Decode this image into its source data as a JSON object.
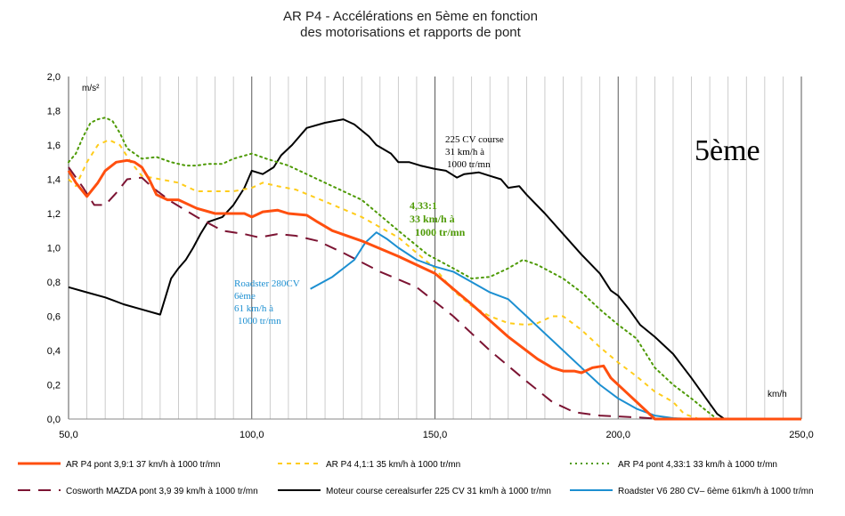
{
  "chart_data": {
    "type": "line",
    "title": [
      "AR P4 - Accélérations en 5ème en fonction",
      "des motorisations et rapports de pont"
    ],
    "ylabel": "m/s²",
    "xlabel": "km/h",
    "xlim": [
      50,
      250
    ],
    "ylim": [
      0,
      2
    ],
    "x_ticks": [
      "50,0",
      "100,0",
      "150,0",
      "200,0",
      "250,0"
    ],
    "y_ticks": [
      "0,0",
      "0,2",
      "0,4",
      "0,6",
      "0,8",
      "1,0",
      "1,2",
      "1,4",
      "1,6",
      "1,8",
      "2,0"
    ],
    "grid": "vertical every 5 km/h, major every 50 km/h",
    "big_label": "5ème",
    "annotations": [
      {
        "lines": [
          "225 CV course",
          "31 km/h à",
          "1000 tr/mn"
        ],
        "color": "#000000"
      },
      {
        "lines": [
          "4,33:1",
          "33 km/h à",
          "1000 tr/mn"
        ],
        "color": "#4e9a06"
      },
      {
        "lines": [
          "Roadster 280CV",
          "6ème",
          "61 km/h à",
          "1000 tr/mn"
        ],
        "color": "#1c8fd1"
      }
    ],
    "series": [
      {
        "name": "AR P4 pont 3,9:1  37 km/h à 1000 tr/mn",
        "color": "#ff4f0f",
        "style": "solid",
        "width": 3,
        "points": [
          [
            50,
            1.45
          ],
          [
            52,
            1.38
          ],
          [
            55,
            1.3
          ],
          [
            58,
            1.38
          ],
          [
            60,
            1.45
          ],
          [
            63,
            1.5
          ],
          [
            66,
            1.51
          ],
          [
            68,
            1.5
          ],
          [
            70,
            1.47
          ],
          [
            72,
            1.4
          ],
          [
            74,
            1.31
          ],
          [
            77,
            1.28
          ],
          [
            80,
            1.28
          ],
          [
            85,
            1.23
          ],
          [
            90,
            1.2
          ],
          [
            95,
            1.2
          ],
          [
            98,
            1.2
          ],
          [
            100,
            1.18
          ],
          [
            103,
            1.21
          ],
          [
            107,
            1.22
          ],
          [
            110,
            1.2
          ],
          [
            115,
            1.19
          ],
          [
            118,
            1.15
          ],
          [
            122,
            1.1
          ],
          [
            130,
            1.04
          ],
          [
            140,
            0.95
          ],
          [
            150,
            0.85
          ],
          [
            160,
            0.67
          ],
          [
            170,
            0.48
          ],
          [
            178,
            0.35
          ],
          [
            182,
            0.3
          ],
          [
            185,
            0.28
          ],
          [
            188,
            0.28
          ],
          [
            190,
            0.27
          ],
          [
            193,
            0.3
          ],
          [
            196,
            0.31
          ],
          [
            198,
            0.24
          ],
          [
            202,
            0.16
          ],
          [
            207,
            0.06
          ],
          [
            210,
            0.0
          ],
          [
            250,
            0.0
          ]
        ]
      },
      {
        "name": "AR P4  4,1:1  35 km/h à 1000 tr/mn",
        "color": "#ffcc1a",
        "style": "dash",
        "width": 2,
        "points": [
          [
            50,
            1.4
          ],
          [
            52,
            1.36
          ],
          [
            55,
            1.5
          ],
          [
            58,
            1.6
          ],
          [
            61,
            1.63
          ],
          [
            64,
            1.6
          ],
          [
            67,
            1.5
          ],
          [
            70,
            1.42
          ],
          [
            75,
            1.4
          ],
          [
            80,
            1.38
          ],
          [
            85,
            1.33
          ],
          [
            90,
            1.33
          ],
          [
            95,
            1.33
          ],
          [
            100,
            1.35
          ],
          [
            103,
            1.38
          ],
          [
            107,
            1.36
          ],
          [
            112,
            1.34
          ],
          [
            120,
            1.27
          ],
          [
            130,
            1.18
          ],
          [
            140,
            1.06
          ],
          [
            150,
            0.88
          ],
          [
            155,
            0.75
          ],
          [
            160,
            0.66
          ],
          [
            165,
            0.6
          ],
          [
            170,
            0.56
          ],
          [
            175,
            0.55
          ],
          [
            178,
            0.56
          ],
          [
            182,
            0.6
          ],
          [
            185,
            0.6
          ],
          [
            190,
            0.52
          ],
          [
            195,
            0.42
          ],
          [
            200,
            0.33
          ],
          [
            205,
            0.25
          ],
          [
            210,
            0.16
          ],
          [
            215,
            0.1
          ],
          [
            218,
            0.03
          ],
          [
            222,
            0.0
          ],
          [
            250,
            0.0
          ]
        ]
      },
      {
        "name": "AR P4 pont  4,33:1  33 km/h à 1000 tr/mn",
        "color": "#4e9a06",
        "style": "dot",
        "width": 2,
        "points": [
          [
            50,
            1.5
          ],
          [
            52,
            1.55
          ],
          [
            54,
            1.65
          ],
          [
            56,
            1.73
          ],
          [
            58,
            1.75
          ],
          [
            60,
            1.76
          ],
          [
            62,
            1.74
          ],
          [
            64,
            1.67
          ],
          [
            66,
            1.58
          ],
          [
            70,
            1.52
          ],
          [
            74,
            1.53
          ],
          [
            78,
            1.5
          ],
          [
            82,
            1.48
          ],
          [
            85,
            1.48
          ],
          [
            88,
            1.49
          ],
          [
            92,
            1.49
          ],
          [
            95,
            1.52
          ],
          [
            100,
            1.55
          ],
          [
            104,
            1.52
          ],
          [
            110,
            1.48
          ],
          [
            120,
            1.38
          ],
          [
            130,
            1.28
          ],
          [
            140,
            1.1
          ],
          [
            148,
            0.96
          ],
          [
            155,
            0.88
          ],
          [
            160,
            0.82
          ],
          [
            165,
            0.83
          ],
          [
            170,
            0.88
          ],
          [
            174,
            0.93
          ],
          [
            178,
            0.9
          ],
          [
            185,
            0.82
          ],
          [
            190,
            0.74
          ],
          [
            195,
            0.64
          ],
          [
            200,
            0.55
          ],
          [
            205,
            0.47
          ],
          [
            210,
            0.3
          ],
          [
            215,
            0.2
          ],
          [
            220,
            0.12
          ],
          [
            224,
            0.05
          ],
          [
            227,
            0.0
          ],
          [
            250,
            0.0
          ]
        ]
      },
      {
        "name": "Cosworth MAZDA pont 3,9  39 km/h à 1000 tr/mn",
        "color": "#7c1433",
        "style": "longdash",
        "width": 2,
        "points": [
          [
            50,
            1.47
          ],
          [
            54,
            1.35
          ],
          [
            57,
            1.25
          ],
          [
            60,
            1.25
          ],
          [
            63,
            1.32
          ],
          [
            66,
            1.4
          ],
          [
            70,
            1.41
          ],
          [
            73,
            1.35
          ],
          [
            78,
            1.27
          ],
          [
            85,
            1.18
          ],
          [
            92,
            1.1
          ],
          [
            98,
            1.08
          ],
          [
            102,
            1.06
          ],
          [
            107,
            1.08
          ],
          [
            112,
            1.07
          ],
          [
            118,
            1.04
          ],
          [
            125,
            0.97
          ],
          [
            135,
            0.86
          ],
          [
            145,
            0.77
          ],
          [
            155,
            0.6
          ],
          [
            165,
            0.4
          ],
          [
            175,
            0.22
          ],
          [
            182,
            0.1
          ],
          [
            188,
            0.04
          ],
          [
            195,
            0.02
          ],
          [
            205,
            0.01
          ],
          [
            212,
            0.0
          ]
        ]
      },
      {
        "name": "Moteur course cerealsurfer 225 CV  31 km/h à 1000 tr/mn",
        "color": "#000000",
        "style": "solid",
        "width": 2,
        "points": [
          [
            50,
            0.77
          ],
          [
            55,
            0.74
          ],
          [
            60,
            0.71
          ],
          [
            65,
            0.67
          ],
          [
            70,
            0.64
          ],
          [
            75,
            0.61
          ],
          [
            78,
            0.82
          ],
          [
            80,
            0.88
          ],
          [
            82,
            0.93
          ],
          [
            84,
            1.0
          ],
          [
            86,
            1.08
          ],
          [
            88,
            1.15
          ],
          [
            92,
            1.18
          ],
          [
            95,
            1.25
          ],
          [
            98,
            1.35
          ],
          [
            100,
            1.45
          ],
          [
            103,
            1.43
          ],
          [
            106,
            1.47
          ],
          [
            108,
            1.54
          ],
          [
            111,
            1.6
          ],
          [
            115,
            1.7
          ],
          [
            120,
            1.73
          ],
          [
            125,
            1.75
          ],
          [
            128,
            1.72
          ],
          [
            132,
            1.65
          ],
          [
            134,
            1.6
          ],
          [
            138,
            1.55
          ],
          [
            140,
            1.5
          ],
          [
            143,
            1.5
          ],
          [
            146,
            1.48
          ],
          [
            150,
            1.46
          ],
          [
            153,
            1.45
          ],
          [
            156,
            1.41
          ],
          [
            158,
            1.43
          ],
          [
            162,
            1.44
          ],
          [
            165,
            1.42
          ],
          [
            168,
            1.4
          ],
          [
            170,
            1.35
          ],
          [
            173,
            1.36
          ],
          [
            175,
            1.31
          ],
          [
            180,
            1.2
          ],
          [
            185,
            1.08
          ],
          [
            190,
            0.96
          ],
          [
            195,
            0.85
          ],
          [
            198,
            0.75
          ],
          [
            200,
            0.72
          ],
          [
            203,
            0.64
          ],
          [
            206,
            0.55
          ],
          [
            210,
            0.48
          ],
          [
            215,
            0.38
          ],
          [
            220,
            0.24
          ],
          [
            224,
            0.12
          ],
          [
            227,
            0.03
          ],
          [
            229,
            0.0
          ],
          [
            250,
            0.0
          ]
        ]
      },
      {
        "name": "Roadster V6 280 CV– 6ème 61km/h à 1000 tr/mn",
        "color": "#1c8fd1",
        "style": "solid",
        "width": 2,
        "points": [
          [
            116,
            0.76
          ],
          [
            122,
            0.83
          ],
          [
            128,
            0.93
          ],
          [
            131,
            1.03
          ],
          [
            134,
            1.09
          ],
          [
            137,
            1.05
          ],
          [
            140,
            1.0
          ],
          [
            145,
            0.93
          ],
          [
            150,
            0.89
          ],
          [
            155,
            0.86
          ],
          [
            160,
            0.8
          ],
          [
            165,
            0.74
          ],
          [
            170,
            0.7
          ],
          [
            175,
            0.6
          ],
          [
            180,
            0.5
          ],
          [
            185,
            0.4
          ],
          [
            190,
            0.3
          ],
          [
            195,
            0.2
          ],
          [
            200,
            0.12
          ],
          [
            205,
            0.06
          ],
          [
            210,
            0.02
          ],
          [
            215,
            0.005
          ],
          [
            220,
            0.0
          ]
        ]
      }
    ]
  }
}
